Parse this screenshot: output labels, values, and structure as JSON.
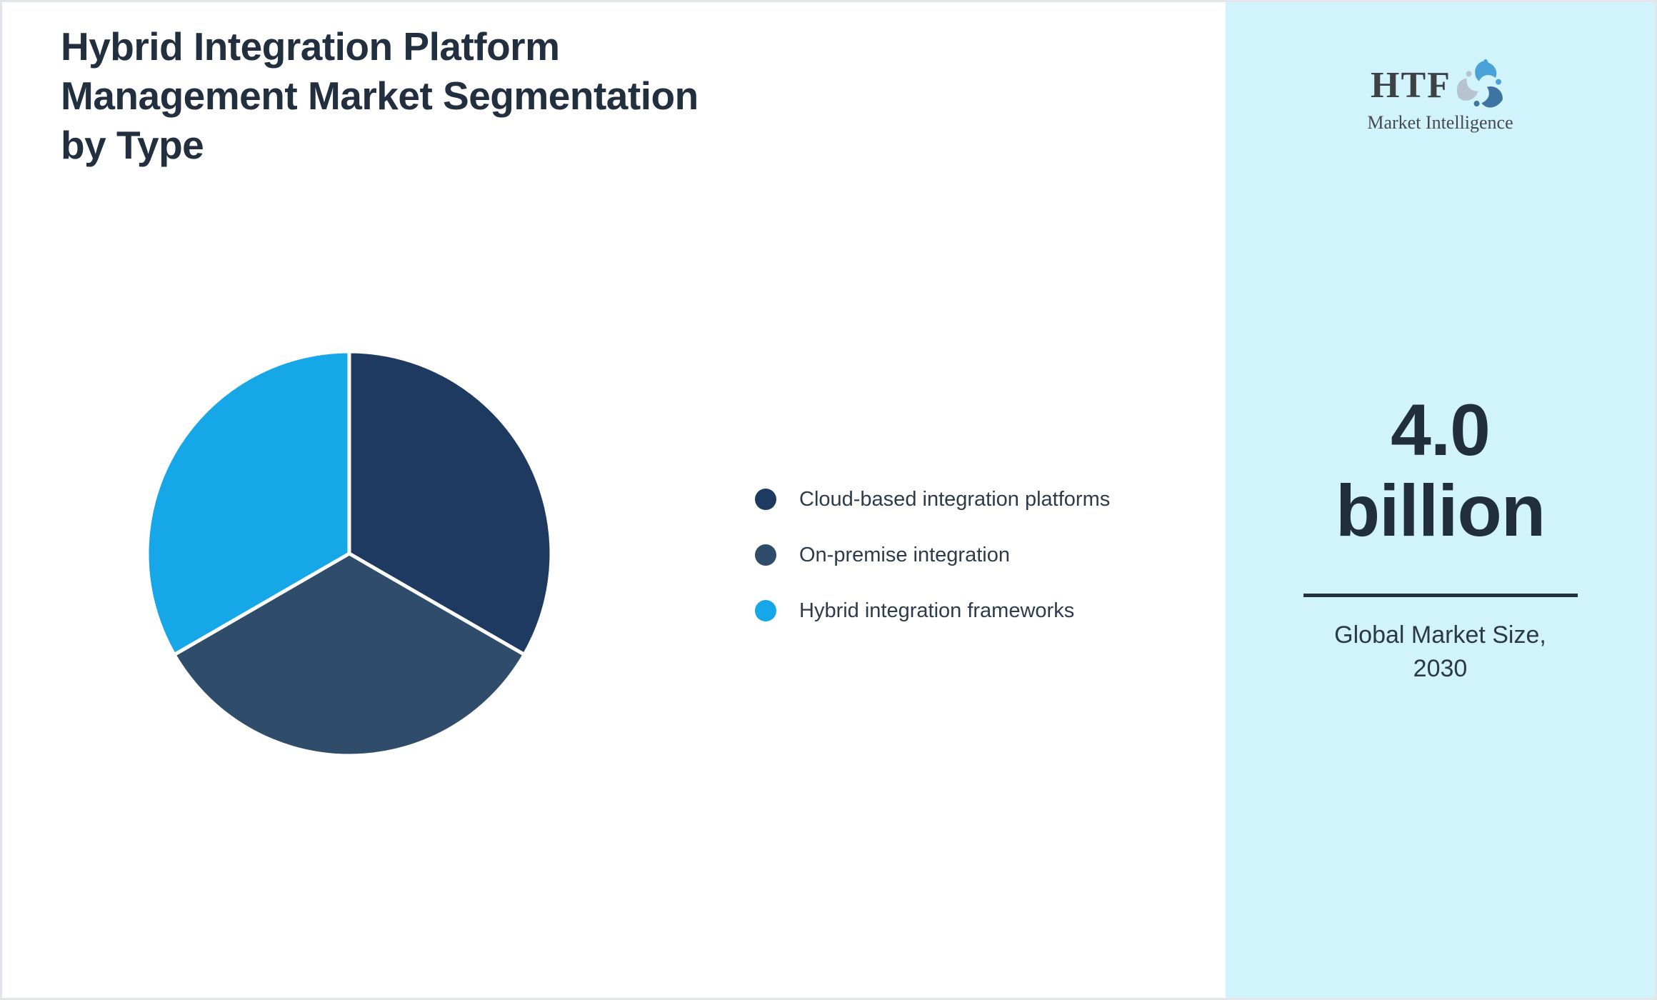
{
  "page": {
    "background": "#ffffff",
    "border_color": "#e2e6ea"
  },
  "title": "Hybrid Integration Platform Management Market Segmentation by Type",
  "title_lines": [
    "Hybrid Integration Platform",
    "Management Market Segmentation",
    "by Type"
  ],
  "chart_data": {
    "type": "pie",
    "title": "Hybrid Integration Platform Management Market Segmentation by Type",
    "legend_position": "right",
    "slice_separator_color": "#ffffff",
    "start_angle_deg": 0,
    "direction": "clockwise",
    "segments": [
      {
        "label": "Cloud-based integration platforms",
        "value": 33.33,
        "color": "#1f3a60"
      },
      {
        "label": "On-premise integration",
        "value": 33.33,
        "color": "#2f4d6b"
      },
      {
        "label": "Hybrid integration frameworks",
        "value": 33.34,
        "color": "#16a7e9"
      }
    ]
  },
  "side_panel": {
    "background": "#d1f3fb",
    "logo": {
      "text": "HTF",
      "subtext": "Market Intelligence",
      "swirl_colors": [
        "#4aa3d8",
        "#3e74a2",
        "#b6c4cf"
      ]
    },
    "market_size": {
      "value": "4.0",
      "unit": "billion",
      "caption_line1": "Global Market Size,",
      "caption_line2": "2030"
    }
  }
}
